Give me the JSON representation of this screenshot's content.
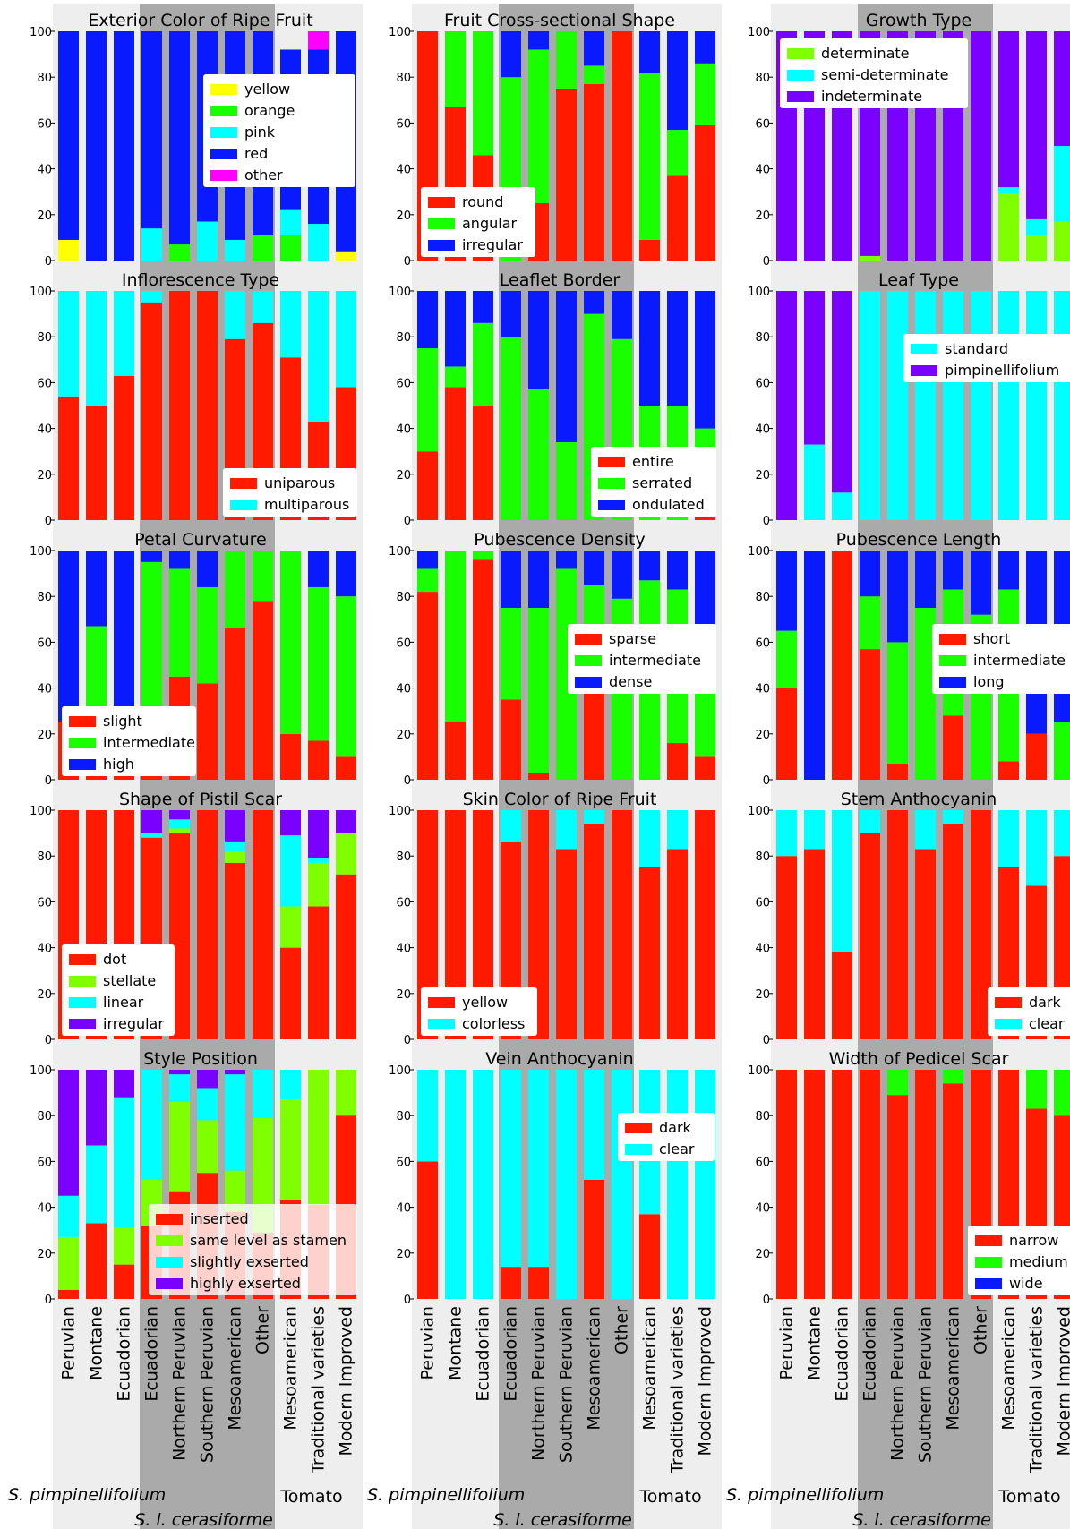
{
  "colors": {
    "red": "#ff1a00",
    "green": "#1aff00",
    "blue": "#0a1aff",
    "cyan": "#00ffff",
    "yellow": "#ffff00",
    "magenta": "#ff00ff",
    "violet": "#7a00ff",
    "lime": "#80ff00",
    "light_bg": "#eeeeee",
    "mid_bg": "#aaaaaa",
    "legend_bg": "#ffffff"
  },
  "categories": [
    "Peruvian",
    "Montane",
    "Ecuadorian",
    "Ecuadorian",
    "Northern Peruvian",
    "Southern Peruvian",
    "Mesoamerican",
    "Other",
    "Mesoamerican",
    "Traditional varieties",
    "Modern Improved"
  ],
  "group_labels": {
    "pimp": "S. pimpinellifolium",
    "ceras": "S. l. cerasiforme",
    "tomato": "Tomato"
  },
  "yticks": [
    "0",
    "20",
    "40",
    "60",
    "80",
    "100"
  ],
  "chart_data": [
    {
      "type": "bar",
      "stacked": true,
      "title": "Exterior Color of Ripe Fruit",
      "ylim": [
        0,
        100
      ],
      "legend_position": "right-upper",
      "series": [
        {
          "name": "yellow",
          "color": "yellow",
          "values": [
            9,
            0,
            0,
            0,
            0,
            0,
            0,
            0,
            0,
            0,
            4
          ]
        },
        {
          "name": "orange",
          "color": "green",
          "values": [
            0,
            0,
            0,
            0,
            7,
            0,
            0,
            11,
            11,
            0,
            0
          ]
        },
        {
          "name": "pink",
          "color": "cyan",
          "values": [
            0,
            0,
            0,
            14,
            0,
            17,
            9,
            0,
            11,
            16,
            0
          ]
        },
        {
          "name": "red",
          "color": "blue",
          "values": [
            91,
            100,
            100,
            86,
            93,
            83,
            91,
            89,
            70,
            76,
            96
          ]
        },
        {
          "name": "other",
          "color": "magenta",
          "values": [
            0,
            0,
            0,
            0,
            0,
            0,
            0,
            0,
            0,
            8,
            0
          ]
        }
      ]
    },
    {
      "type": "bar",
      "stacked": true,
      "title": "Fruit Cross-sectional Shape",
      "ylim": [
        0,
        100
      ],
      "legend_position": "left-lower",
      "series": [
        {
          "name": "round",
          "color": "red",
          "values": [
            100,
            67,
            46,
            0,
            25,
            75,
            77,
            100,
            9,
            37,
            59
          ]
        },
        {
          "name": "angular",
          "color": "green",
          "values": [
            0,
            33,
            54,
            80,
            67,
            25,
            8,
            0,
            73,
            20,
            27
          ]
        },
        {
          "name": "irregular",
          "color": "blue",
          "values": [
            0,
            0,
            0,
            20,
            8,
            0,
            15,
            0,
            18,
            43,
            14
          ]
        }
      ]
    },
    {
      "type": "bar",
      "stacked": true,
      "title": "Growth Type",
      "ylim": [
        0,
        100
      ],
      "legend_position": "left-upper",
      "series": [
        {
          "name": "determinate",
          "color": "lime",
          "values": [
            0,
            0,
            0,
            2,
            0,
            0,
            0,
            0,
            29,
            11,
            17
          ]
        },
        {
          "name": "semi-determinate",
          "color": "cyan",
          "values": [
            0,
            0,
            0,
            0,
            0,
            0,
            0,
            0,
            3,
            7,
            33
          ]
        },
        {
          "name": "indeterminate",
          "color": "violet",
          "values": [
            100,
            100,
            100,
            98,
            100,
            100,
            100,
            100,
            68,
            82,
            50
          ]
        }
      ]
    },
    {
      "type": "bar",
      "stacked": true,
      "title": "Inflorescence Type",
      "ylim": [
        0,
        100
      ],
      "legend_position": "right-lower",
      "series": [
        {
          "name": "uniparous",
          "color": "red",
          "values": [
            54,
            50,
            63,
            95,
            100,
            100,
            79,
            86,
            71,
            43,
            58
          ]
        },
        {
          "name": "multiparous",
          "color": "cyan",
          "values": [
            46,
            50,
            37,
            5,
            0,
            0,
            21,
            14,
            29,
            57,
            42
          ]
        }
      ]
    },
    {
      "type": "bar",
      "stacked": true,
      "title": "Leaflet Border",
      "ylim": [
        0,
        100
      ],
      "legend_position": "right-lower",
      "series": [
        {
          "name": "entire",
          "color": "red",
          "values": [
            30,
            58,
            50,
            0,
            0,
            0,
            0,
            0,
            0,
            0,
            20
          ]
        },
        {
          "name": "serrated",
          "color": "green",
          "values": [
            45,
            9,
            36,
            80,
            57,
            34,
            90,
            79,
            50,
            50,
            20
          ]
        },
        {
          "name": "ondulated",
          "color": "blue",
          "values": [
            25,
            33,
            14,
            20,
            43,
            66,
            10,
            21,
            50,
            50,
            60
          ]
        }
      ]
    },
    {
      "type": "bar",
      "stacked": true,
      "title": "Leaf Type",
      "ylim": [
        0,
        100
      ],
      "legend_position": "right-upper",
      "series": [
        {
          "name": "standard",
          "color": "cyan",
          "values": [
            0,
            33,
            12,
            100,
            100,
            100,
            100,
            100,
            100,
            100,
            100
          ]
        },
        {
          "name": "pimpinellifolium",
          "color": "violet",
          "values": [
            100,
            67,
            88,
            0,
            0,
            0,
            0,
            0,
            0,
            0,
            0
          ]
        }
      ]
    },
    {
      "type": "bar",
      "stacked": true,
      "title": "Petal Curvature",
      "ylim": [
        0,
        100
      ],
      "legend_position": "left-lower",
      "series": [
        {
          "name": "slight",
          "color": "red",
          "values": [
            25,
            17,
            19,
            31,
            45,
            42,
            66,
            78,
            20,
            17,
            10
          ]
        },
        {
          "name": "intermediate",
          "color": "green",
          "values": [
            0,
            50,
            12,
            64,
            47,
            42,
            34,
            22,
            80,
            67,
            70
          ]
        },
        {
          "name": "high",
          "color": "blue",
          "values": [
            75,
            33,
            69,
            5,
            8,
            16,
            0,
            0,
            0,
            16,
            20
          ]
        }
      ]
    },
    {
      "type": "bar",
      "stacked": true,
      "title": "Pubescence Density",
      "ylim": [
        0,
        100
      ],
      "legend_position": "right-middle",
      "series": [
        {
          "name": "sparse",
          "color": "red",
          "values": [
            82,
            25,
            96,
            35,
            3,
            0,
            38,
            0,
            0,
            16,
            10
          ]
        },
        {
          "name": "intermediate",
          "color": "green",
          "values": [
            10,
            75,
            4,
            40,
            72,
            92,
            47,
            79,
            87,
            67,
            50
          ]
        },
        {
          "name": "dense",
          "color": "blue",
          "values": [
            8,
            0,
            0,
            25,
            25,
            8,
            15,
            21,
            13,
            17,
            40
          ]
        }
      ]
    },
    {
      "type": "bar",
      "stacked": true,
      "title": "Pubescence Length",
      "ylim": [
        0,
        100
      ],
      "legend_position": "right-middle",
      "series": [
        {
          "name": "short",
          "color": "red",
          "values": [
            40,
            0,
            100,
            57,
            7,
            0,
            28,
            0,
            8,
            20,
            0
          ]
        },
        {
          "name": "intermediate",
          "color": "green",
          "values": [
            25,
            0,
            0,
            23,
            53,
            75,
            55,
            72,
            75,
            0,
            25
          ]
        },
        {
          "name": "long",
          "color": "blue",
          "values": [
            35,
            100,
            0,
            20,
            40,
            25,
            17,
            28,
            17,
            80,
            75
          ]
        }
      ]
    },
    {
      "type": "bar",
      "stacked": true,
      "title": "Shape of Pistil Scar",
      "ylim": [
        0,
        100
      ],
      "legend_position": "left-lower",
      "series": [
        {
          "name": "dot",
          "color": "red",
          "values": [
            100,
            100,
            100,
            88,
            90,
            100,
            77,
            100,
            40,
            58,
            72
          ]
        },
        {
          "name": "stellate",
          "color": "lime",
          "values": [
            0,
            0,
            0,
            0,
            2,
            0,
            5,
            0,
            18,
            19,
            18
          ]
        },
        {
          "name": "linear",
          "color": "cyan",
          "values": [
            0,
            0,
            0,
            2,
            4,
            0,
            4,
            0,
            31,
            2,
            0
          ]
        },
        {
          "name": "irregular",
          "color": "violet",
          "values": [
            0,
            0,
            0,
            10,
            4,
            0,
            14,
            0,
            11,
            21,
            10
          ]
        }
      ]
    },
    {
      "type": "bar",
      "stacked": true,
      "title": "Skin Color of Ripe Fruit",
      "ylim": [
        0,
        100
      ],
      "legend_position": "left-lower",
      "series": [
        {
          "name": "yellow",
          "color": "red",
          "values": [
            100,
            100,
            100,
            86,
            100,
            83,
            94,
            100,
            75,
            83,
            100
          ]
        },
        {
          "name": "colorless",
          "color": "cyan",
          "values": [
            0,
            0,
            0,
            14,
            0,
            17,
            6,
            0,
            25,
            17,
            0
          ]
        }
      ]
    },
    {
      "type": "bar",
      "stacked": true,
      "title": "Stem Anthocyanin",
      "ylim": [
        0,
        100
      ],
      "legend_position": "right-lower",
      "series": [
        {
          "name": "dark",
          "color": "red",
          "values": [
            80,
            83,
            38,
            90,
            100,
            83,
            94,
            100,
            75,
            67,
            80
          ]
        },
        {
          "name": "clear",
          "color": "cyan",
          "values": [
            20,
            17,
            62,
            10,
            0,
            17,
            6,
            0,
            25,
            33,
            20
          ]
        }
      ]
    },
    {
      "type": "bar",
      "stacked": true,
      "title": "Style Position",
      "ylim": [
        0,
        100
      ],
      "legend_position": "right-lower",
      "series": [
        {
          "name": "inserted",
          "color": "red",
          "values": [
            4,
            33,
            15,
            32,
            47,
            55,
            38,
            29,
            43,
            41,
            80
          ]
        },
        {
          "name": "same level as stamen",
          "color": "lime",
          "values": [
            23,
            0,
            16,
            20,
            39,
            23,
            18,
            50,
            44,
            59,
            20
          ]
        },
        {
          "name": "slightly exserted",
          "color": "cyan",
          "values": [
            18,
            34,
            57,
            48,
            12,
            14,
            42,
            21,
            13,
            0,
            0
          ]
        },
        {
          "name": "highly exserted",
          "color": "violet",
          "values": [
            55,
            33,
            12,
            0,
            2,
            8,
            2,
            0,
            0,
            0,
            0
          ]
        }
      ]
    },
    {
      "type": "bar",
      "stacked": true,
      "title": "Vein Anthocyanin",
      "ylim": [
        0,
        100
      ],
      "legend_position": "right-upper",
      "series": [
        {
          "name": "dark",
          "color": "red",
          "values": [
            60,
            0,
            0,
            14,
            14,
            0,
            52,
            0,
            37,
            0,
            0
          ]
        },
        {
          "name": "clear",
          "color": "cyan",
          "values": [
            40,
            100,
            100,
            86,
            86,
            100,
            48,
            100,
            63,
            100,
            100
          ]
        }
      ]
    },
    {
      "type": "bar",
      "stacked": true,
      "title": "Width of Pedicel Scar",
      "ylim": [
        0,
        100
      ],
      "legend_position": "right-lower",
      "series": [
        {
          "name": "narrow",
          "color": "red",
          "values": [
            100,
            100,
            100,
            100,
            89,
            100,
            94,
            100,
            100,
            83,
            80
          ]
        },
        {
          "name": "medium",
          "color": "green",
          "values": [
            0,
            0,
            0,
            0,
            11,
            0,
            6,
            0,
            0,
            17,
            20
          ]
        },
        {
          "name": "wide",
          "color": "blue",
          "values": [
            0,
            0,
            0,
            0,
            0,
            0,
            0,
            0,
            0,
            0,
            0
          ]
        }
      ]
    }
  ]
}
